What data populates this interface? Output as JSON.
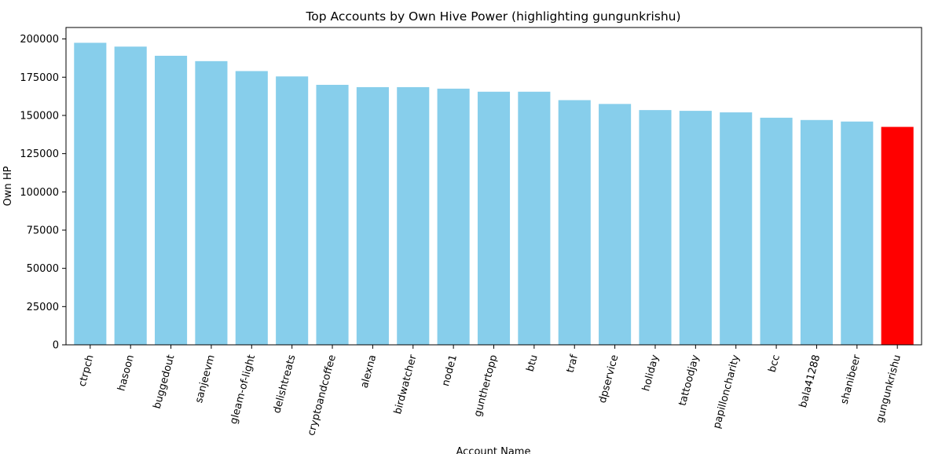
{
  "chart_data": {
    "type": "bar",
    "title": "Top Accounts by Own Hive Power (highlighting gungunkrishu)",
    "xlabel": "Account Name",
    "ylabel": "Own HP",
    "ylim": [
      0,
      207500
    ],
    "yticks": [
      0,
      25000,
      50000,
      75000,
      100000,
      125000,
      150000,
      175000,
      200000
    ],
    "grid": false,
    "categories": [
      "ctrpch",
      "hasoon",
      "buggedout",
      "sanjeevm",
      "gleam-of-light",
      "delishtreats",
      "cryptoandcoffee",
      "alexna",
      "birdwatcher",
      "node1",
      "gunthertopp",
      "btu",
      "traf",
      "dpservice",
      "holiday",
      "tattoodjay",
      "papilloncharity",
      "bcc",
      "bala41288",
      "shanibeer",
      "gungunkrishu"
    ],
    "values": [
      197500,
      195000,
      189000,
      185500,
      179000,
      175500,
      170000,
      168500,
      168500,
      167500,
      165500,
      165500,
      160000,
      157500,
      153500,
      153000,
      152000,
      148500,
      147000,
      146000,
      142500
    ],
    "bar_color": "#87ceeb",
    "highlight": "gungunkrishu",
    "highlight_color": "#ff0000"
  }
}
